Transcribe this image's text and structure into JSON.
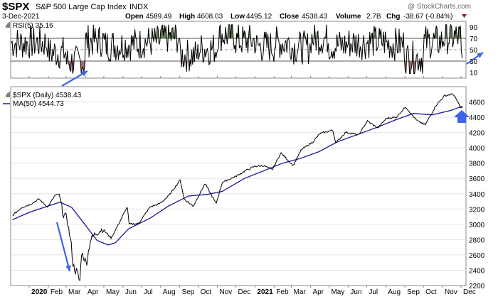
{
  "header": {
    "symbol": "$SPX",
    "name": "S&P 500 Large Cap Index",
    "exchange": "INDX",
    "date": "3-Dec-2021",
    "open_label": "Open",
    "open": "4589.49",
    "high_label": "High",
    "high": "4608.03",
    "low_label": "Low",
    "low": "4495.12",
    "close_label": "Close",
    "close": "4538.43",
    "volume_label": "Volume",
    "volume": "2.7B",
    "chg_label": "Chg",
    "chg": "-38.67 (-0.84%)",
    "watermark": "@ StockCharts.com"
  },
  "colors": {
    "rsi_above": "#5f7f55",
    "rsi_below": "#a06d6d",
    "ma_line": "#1a1a9c",
    "price_line": "#000000",
    "arrow": "#3f63e6",
    "grid": "#e4e4e4"
  },
  "chart_data": [
    {
      "type": "line",
      "title": "RSI(5) 35.16",
      "legend": "RSI(5) 35.16",
      "ylim": [
        0,
        100
      ],
      "y_ticks": [
        10,
        30,
        50,
        70,
        90
      ],
      "reference_lines": [
        30,
        50,
        70
      ],
      "shading": "above 70 green, below 30 red",
      "x": [
        "2020-01",
        "2020-02",
        "2020-03",
        "2020-04",
        "2020-05",
        "2020-06",
        "2020-07",
        "2020-08",
        "2020-09",
        "2020-10",
        "2020-11",
        "2020-12",
        "2021-01",
        "2021-02",
        "2021-03",
        "2021-04",
        "2021-05",
        "2021-06",
        "2021-07",
        "2021-08",
        "2021-09",
        "2021-10",
        "2021-11",
        "2021-12"
      ],
      "series": [
        {
          "name": "RSI(5)",
          "values": [
            62,
            45,
            28,
            66,
            58,
            60,
            64,
            72,
            40,
            52,
            76,
            66,
            56,
            62,
            54,
            70,
            58,
            62,
            64,
            60,
            36,
            64,
            72,
            35
          ]
        }
      ]
    },
    {
      "type": "line",
      "legend": [
        "$SPX (Daily) 4538.43",
        "MA(50) 4544.73"
      ],
      "ylim": [
        2200,
        4800
      ],
      "y_ticks": [
        2200,
        2400,
        2600,
        2800,
        3000,
        3200,
        3400,
        3600,
        3800,
        4000,
        4200,
        4400,
        4600
      ],
      "x_ticks": [
        "2020",
        "Feb",
        "Mar",
        "Apr",
        "May",
        "Jun",
        "Jul",
        "Aug",
        "Sep",
        "Oct",
        "Nov",
        "Dec",
        "2021",
        "Feb",
        "Mar",
        "Apr",
        "May",
        "Jun",
        "Jul",
        "Aug",
        "Sep",
        "Oct",
        "Nov",
        "Dec"
      ],
      "series": [
        {
          "name": "$SPX (Daily)",
          "values": [
            [
              "2019-12-05",
              3117
            ],
            [
              "2019-12-20",
              3221
            ],
            [
              "2020-01-02",
              3258
            ],
            [
              "2020-01-17",
              3330
            ],
            [
              "2020-01-31",
              3225
            ],
            [
              "2020-02-12",
              3379
            ],
            [
              "2020-02-19",
              3386
            ],
            [
              "2020-02-25",
              3128
            ],
            [
              "2020-03-02",
              3090
            ],
            [
              "2020-03-09",
              2746
            ],
            [
              "2020-03-12",
              2480
            ],
            [
              "2020-03-16",
              2386
            ],
            [
              "2020-03-18",
              2398
            ],
            [
              "2020-03-23",
              2237
            ],
            [
              "2020-03-26",
              2630
            ],
            [
              "2020-04-03",
              2488
            ],
            [
              "2020-04-09",
              2790
            ],
            [
              "2020-04-17",
              2875
            ],
            [
              "2020-04-29",
              2939
            ],
            [
              "2020-05-13",
              2820
            ],
            [
              "2020-05-27",
              3036
            ],
            [
              "2020-06-08",
              3232
            ],
            [
              "2020-06-11",
              3002
            ],
            [
              "2020-06-26",
              3009
            ],
            [
              "2020-07-15",
              3226
            ],
            [
              "2020-07-31",
              3271
            ],
            [
              "2020-08-14",
              3372
            ],
            [
              "2020-09-02",
              3580
            ],
            [
              "2020-09-08",
              3331
            ],
            [
              "2020-09-23",
              3237
            ],
            [
              "2020-10-12",
              3534
            ],
            [
              "2020-10-30",
              3270
            ],
            [
              "2020-11-09",
              3550
            ],
            [
              "2020-11-30",
              3622
            ],
            [
              "2020-12-15",
              3694
            ],
            [
              "2020-12-31",
              3756
            ],
            [
              "2021-01-15",
              3768
            ],
            [
              "2021-01-29",
              3714
            ],
            [
              "2021-02-12",
              3934
            ],
            [
              "2021-03-04",
              3768
            ],
            [
              "2021-03-17",
              3974
            ],
            [
              "2021-04-05",
              4078
            ],
            [
              "2021-04-16",
              4185
            ],
            [
              "2021-05-07",
              4232
            ],
            [
              "2021-05-12",
              4063
            ],
            [
              "2021-05-28",
              4204
            ],
            [
              "2021-06-18",
              4166
            ],
            [
              "2021-07-02",
              4352
            ],
            [
              "2021-07-19",
              4258
            ],
            [
              "2021-08-02",
              4387
            ],
            [
              "2021-08-18",
              4400
            ],
            [
              "2021-09-02",
              4537
            ],
            [
              "2021-09-20",
              4358
            ],
            [
              "2021-10-04",
              4300
            ],
            [
              "2021-10-21",
              4549
            ],
            [
              "2021-11-04",
              4680
            ],
            [
              "2021-11-18",
              4704
            ],
            [
              "2021-11-26",
              4595
            ],
            [
              "2021-12-01",
              4513
            ],
            [
              "2021-12-03",
              4538
            ]
          ]
        },
        {
          "name": "MA(50)",
          "values": [
            [
              "2019-12-05",
              3060
            ],
            [
              "2020-01-02",
              3160
            ],
            [
              "2020-02-20",
              3290
            ],
            [
              "2020-03-10",
              3220
            ],
            [
              "2020-03-31",
              3000
            ],
            [
              "2020-04-20",
              2790
            ],
            [
              "2020-05-08",
              2730
            ],
            [
              "2020-05-20",
              2760
            ],
            [
              "2020-06-10",
              2940
            ],
            [
              "2020-07-15",
              3080
            ],
            [
              "2020-08-14",
              3240
            ],
            [
              "2020-09-15",
              3370
            ],
            [
              "2020-10-15",
              3390
            ],
            [
              "2020-11-09",
              3430
            ],
            [
              "2020-12-15",
              3600
            ],
            [
              "2021-01-15",
              3700
            ],
            [
              "2021-02-15",
              3800
            ],
            [
              "2021-03-15",
              3860
            ],
            [
              "2021-04-15",
              3950
            ],
            [
              "2021-05-15",
              4080
            ],
            [
              "2021-06-15",
              4170
            ],
            [
              "2021-07-15",
              4260
            ],
            [
              "2021-08-15",
              4360
            ],
            [
              "2021-09-15",
              4450
            ],
            [
              "2021-10-15",
              4430
            ],
            [
              "2021-11-15",
              4490
            ],
            [
              "2021-12-03",
              4545
            ]
          ]
        }
      ]
    }
  ]
}
